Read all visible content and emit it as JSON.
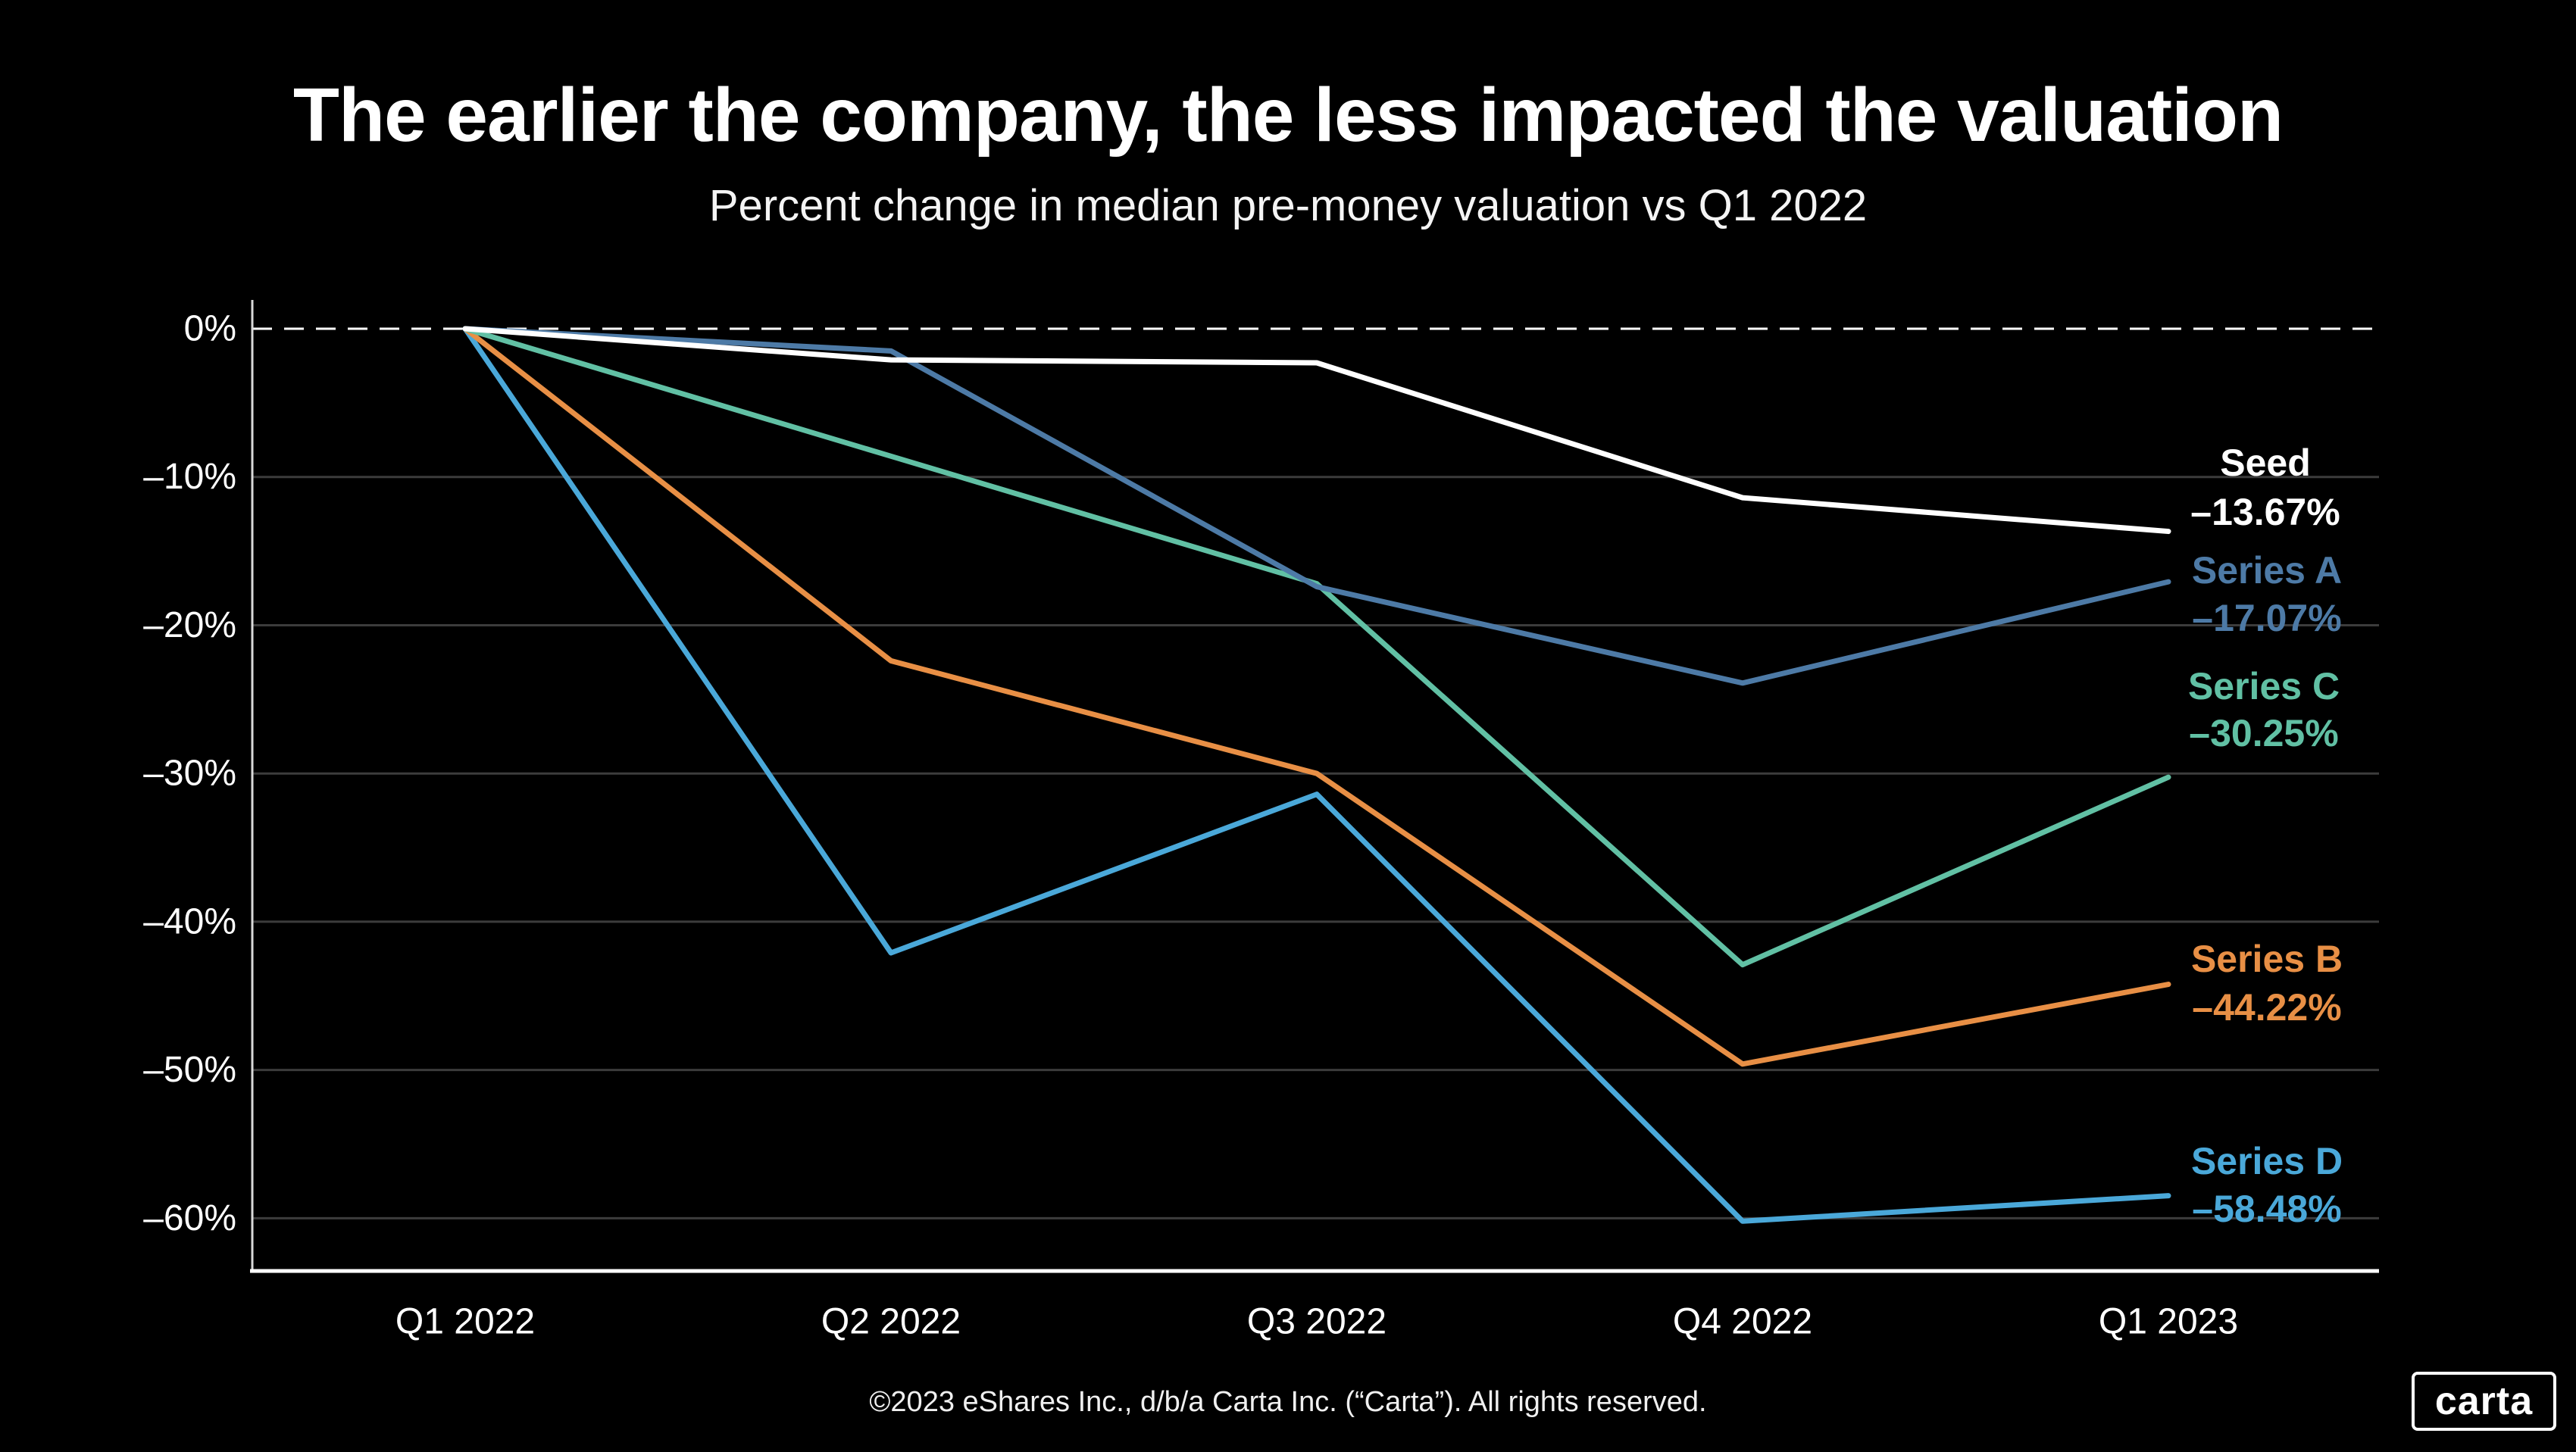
{
  "page": {
    "title": "The earlier the company, the less impacted the valuation",
    "subtitle": "Percent change in median pre-money valuation vs Q1 2022",
    "footer": "©2023 eShares Inc., d/b/a Carta Inc. (“Carta”). All rights reserved.",
    "logo_text": "carta",
    "background_color": "#000000"
  },
  "chart_data": {
    "type": "line",
    "title": "The earlier the company, the less impacted the valuation",
    "subtitle": "Percent change in median pre-money valuation vs Q1 2022",
    "categories": [
      "Q1 2022",
      "Q2 2022",
      "Q3 2022",
      "Q4 2022",
      "Q1 2023"
    ],
    "series": [
      {
        "name": "Seed",
        "color": "#ffffff",
        "values": [
          0,
          -2.1,
          -2.3,
          -11.4,
          -13.67
        ],
        "end_label": "–13.67%"
      },
      {
        "name": "Series A",
        "color": "#4d7aa6",
        "values": [
          0,
          -1.5,
          -17.4,
          -23.9,
          -17.07
        ],
        "end_label": "–17.07%"
      },
      {
        "name": "Series C",
        "color": "#61c0a4",
        "values": [
          0,
          -8.6,
          -17.2,
          -42.9,
          -30.25
        ],
        "end_label": "–30.25%"
      },
      {
        "name": "Series B",
        "color": "#e88f45",
        "values": [
          0,
          -22.4,
          -30.0,
          -49.6,
          -44.22
        ],
        "end_label": "–44.22%"
      },
      {
        "name": "Series D",
        "color": "#4aa8d9",
        "values": [
          0,
          -42.1,
          -31.4,
          -60.2,
          -58.48
        ],
        "end_label": "–58.48%"
      }
    ],
    "y_ticks": [
      "0%",
      "–10%",
      "–20%",
      "–30%",
      "–40%",
      "–50%",
      "–60%"
    ],
    "y_tick_values": [
      0,
      -10,
      -20,
      -30,
      -40,
      -50,
      -60
    ],
    "ylim": [
      -64,
      2
    ],
    "grid": true,
    "grid_color": "#3c3c3c",
    "zero_line_style": "dashed",
    "zero_line_color": "#ffffff",
    "y_axis_color": "#d9d9d9",
    "x_axis_color": "#ffffff",
    "tick_text_color": "#ffffff",
    "legend_position": "right-end-labels"
  }
}
